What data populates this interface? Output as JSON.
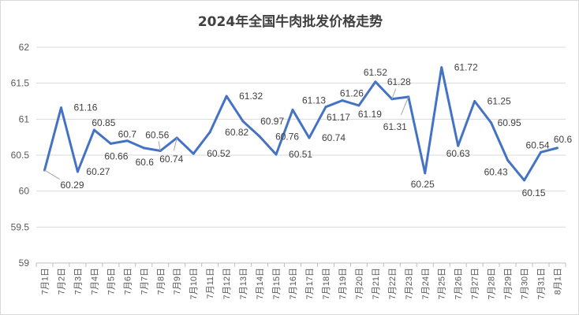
{
  "chart_data": {
    "type": "line",
    "title": "2024年全国牛肉批发价格走势",
    "xlabel": "",
    "ylabel": "",
    "ylim": [
      59,
      62
    ],
    "yticks": [
      59,
      59.5,
      60,
      60.5,
      61,
      61.5,
      62
    ],
    "grid": true,
    "legend": "none",
    "color": "#4472C4",
    "categories": [
      "7月1日",
      "7月2日",
      "7月3日",
      "7月4日",
      "7月5日",
      "7月6日",
      "7月7日",
      "7月8日",
      "7月9日",
      "7月10日",
      "7月11日",
      "7月12日",
      "7月13日",
      "7月14日",
      "7月15日",
      "7月16日",
      "7月17日",
      "7月18日",
      "7月19日",
      "7月20日",
      "7月21日",
      "7月22日",
      "7月23日",
      "7月24日",
      "7月25日",
      "7月26日",
      "7月27日",
      "7月28日",
      "7月29日",
      "7月30日",
      "7月31日",
      "8月1日"
    ],
    "values": [
      60.29,
      61.16,
      60.27,
      60.85,
      60.66,
      60.7,
      60.6,
      60.56,
      60.74,
      60.52,
      60.82,
      61.32,
      60.97,
      60.76,
      60.51,
      61.13,
      60.74,
      61.17,
      61.26,
      61.19,
      61.52,
      61.28,
      61.31,
      60.25,
      61.72,
      60.63,
      61.25,
      60.95,
      60.43,
      60.15,
      60.54,
      60.6
    ]
  }
}
